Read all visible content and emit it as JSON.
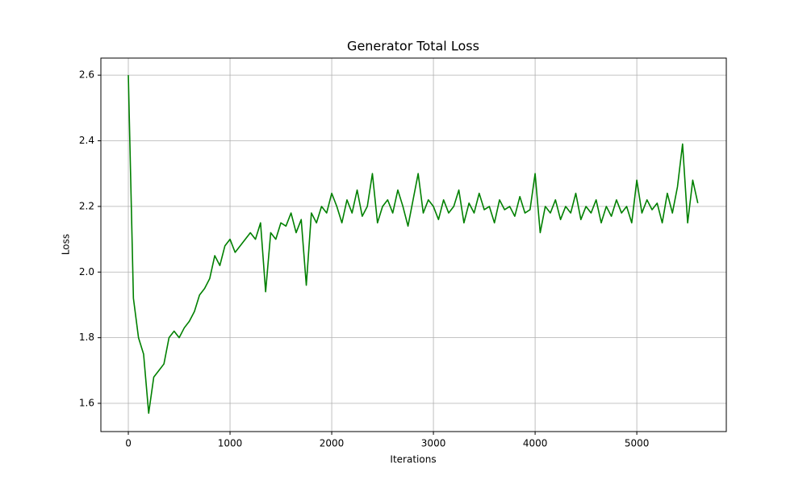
{
  "chart_data": {
    "type": "line",
    "title": "Generator Total Loss",
    "xlabel": "Iterations",
    "ylabel": "Loss",
    "x": [
      0,
      50,
      100,
      150,
      200,
      250,
      300,
      350,
      400,
      450,
      500,
      550,
      600,
      650,
      700,
      750,
      800,
      850,
      900,
      950,
      1000,
      1050,
      1100,
      1150,
      1200,
      1250,
      1300,
      1350,
      1400,
      1450,
      1500,
      1550,
      1600,
      1650,
      1700,
      1750,
      1800,
      1850,
      1900,
      1950,
      2000,
      2050,
      2100,
      2150,
      2200,
      2250,
      2300,
      2350,
      2400,
      2450,
      2500,
      2550,
      2600,
      2650,
      2700,
      2750,
      2800,
      2850,
      2900,
      2950,
      3000,
      3050,
      3100,
      3150,
      3200,
      3250,
      3300,
      3350,
      3400,
      3450,
      3500,
      3550,
      3600,
      3650,
      3700,
      3750,
      3800,
      3850,
      3900,
      3950,
      4000,
      4050,
      4100,
      4150,
      4200,
      4250,
      4300,
      4350,
      4400,
      4450,
      4500,
      4550,
      4600,
      4650,
      4700,
      4750,
      4800,
      4850,
      4900,
      4950,
      5000,
      5050,
      5100,
      5150,
      5200,
      5250,
      5300,
      5350,
      5400,
      5450,
      5500,
      5550,
      5600
    ],
    "series": [
      {
        "name": "Generator Total Loss",
        "color": "#008000",
        "values": [
          2.6,
          1.92,
          1.8,
          1.75,
          1.57,
          1.68,
          1.7,
          1.72,
          1.8,
          1.82,
          1.8,
          1.83,
          1.85,
          1.88,
          1.93,
          1.95,
          1.98,
          2.05,
          2.02,
          2.08,
          2.1,
          2.06,
          2.08,
          2.1,
          2.12,
          2.1,
          2.15,
          1.94,
          2.12,
          2.1,
          2.15,
          2.14,
          2.18,
          2.12,
          2.16,
          1.96,
          2.18,
          2.15,
          2.2,
          2.18,
          2.24,
          2.2,
          2.15,
          2.22,
          2.18,
          2.25,
          2.17,
          2.2,
          2.3,
          2.15,
          2.2,
          2.22,
          2.18,
          2.25,
          2.2,
          2.14,
          2.22,
          2.3,
          2.18,
          2.22,
          2.2,
          2.16,
          2.22,
          2.18,
          2.2,
          2.25,
          2.15,
          2.21,
          2.18,
          2.24,
          2.19,
          2.2,
          2.15,
          2.22,
          2.19,
          2.2,
          2.17,
          2.23,
          2.18,
          2.19,
          2.3,
          2.12,
          2.2,
          2.18,
          2.22,
          2.16,
          2.2,
          2.18,
          2.24,
          2.16,
          2.2,
          2.18,
          2.22,
          2.15,
          2.2,
          2.17,
          2.22,
          2.18,
          2.2,
          2.15,
          2.28,
          2.18,
          2.22,
          2.19,
          2.21,
          2.15,
          2.24,
          2.18,
          2.26,
          2.39,
          2.15,
          2.28,
          2.21
        ]
      }
    ],
    "xlim": [
      -270,
      5880
    ],
    "ylim": [
      1.514,
      2.652
    ],
    "xticks": [
      0,
      1000,
      2000,
      3000,
      4000,
      5000
    ],
    "yticks": [
      1.6,
      1.8,
      {
        "value": 2,
        "label": "2.0"
      },
      2.2,
      2.4,
      2.6
    ],
    "grid": true
  }
}
